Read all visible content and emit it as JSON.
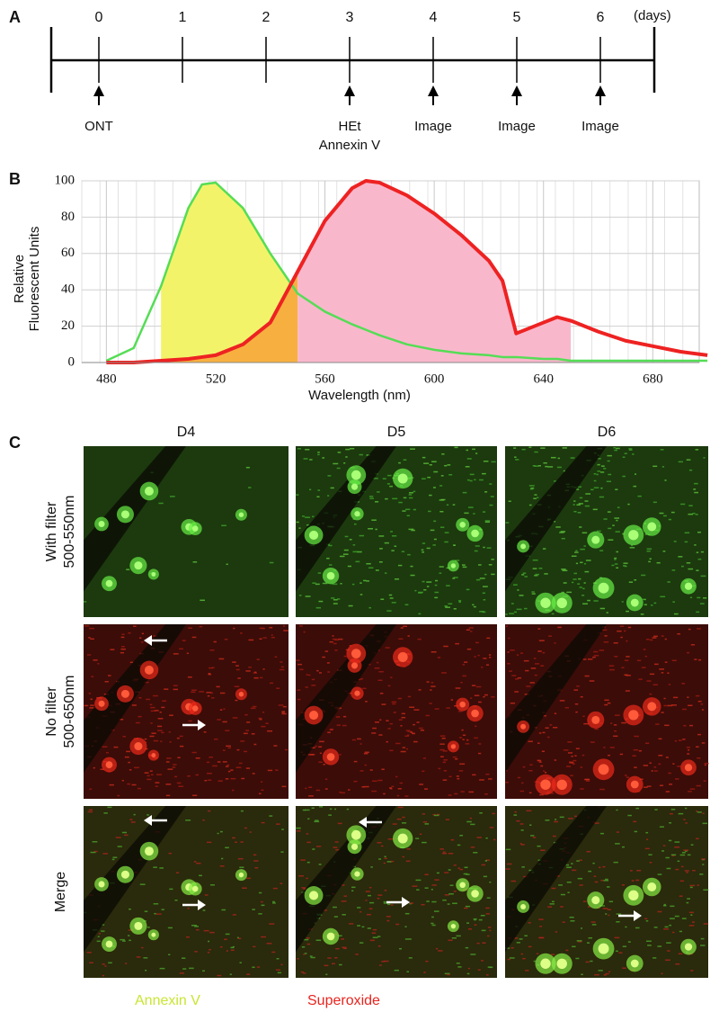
{
  "panel_a": {
    "label": "A",
    "ticks": [
      0,
      1,
      2,
      3,
      4,
      5,
      6
    ],
    "unit": "(days)",
    "events": [
      {
        "day": 0,
        "label": [
          "ONT"
        ]
      },
      {
        "day": 3,
        "label": [
          "HEt",
          "Annexin V"
        ]
      },
      {
        "day": 4,
        "label": [
          "Image"
        ]
      },
      {
        "day": 5,
        "label": [
          "Image"
        ]
      },
      {
        "day": 6,
        "label": [
          "Image"
        ]
      }
    ]
  },
  "panel_b": {
    "label": "B"
  },
  "chart_data": {
    "type": "line",
    "ylabel": [
      "Relative",
      "Fluorescent Units"
    ],
    "xlabel": "Wavelength (nm)",
    "x": [
      480,
      490,
      500,
      510,
      515,
      520,
      530,
      540,
      550,
      560,
      570,
      575,
      580,
      590,
      600,
      610,
      620,
      625,
      630,
      640,
      645,
      650,
      660,
      670,
      680,
      690,
      700
    ],
    "series": [
      {
        "color": "#55dd55",
        "width": 2.5,
        "values": [
          1,
          8,
          42,
          85,
          98,
          99,
          85,
          60,
          38,
          28,
          21,
          18,
          15,
          10,
          7,
          5,
          4,
          3,
          3,
          2,
          2,
          1,
          1,
          1,
          1,
          1,
          1
        ]
      },
      {
        "color": "#ee2222",
        "width": 4,
        "values": [
          0,
          0,
          1,
          2,
          3,
          4,
          10,
          22,
          50,
          78,
          96,
          100,
          99,
          92,
          82,
          70,
          56,
          45,
          16,
          22,
          25,
          23,
          17,
          12,
          9,
          6,
          4
        ]
      }
    ],
    "bands": [
      {
        "series": 0,
        "from": 500,
        "to": 550,
        "color": "#f3f36a"
      },
      {
        "series": 1,
        "from": 500,
        "to": 550,
        "color": "#f7b040"
      },
      {
        "series": 1,
        "from": 550,
        "to": 650,
        "color": "#f9b7cc"
      }
    ],
    "xlim": [
      471,
      697
    ],
    "xticks": [
      480,
      520,
      560,
      600,
      640,
      680
    ],
    "ylim": [
      0,
      100
    ],
    "yticks": [
      0,
      20,
      40,
      60,
      80,
      100
    ],
    "grid": true
  },
  "panel_c": {
    "label": "C",
    "columns": [
      "D4",
      "D5",
      "D6"
    ],
    "rows": [
      {
        "label": [
          "With filter",
          "500-550nm"
        ]
      },
      {
        "label": [
          "No filter",
          "500-650nm"
        ]
      },
      {
        "label": [
          "Merge"
        ]
      }
    ],
    "legend": [
      {
        "text": "Annexin V",
        "color": "#c8e632"
      },
      {
        "text": "Superoxide",
        "color": "#e8251f"
      }
    ]
  }
}
